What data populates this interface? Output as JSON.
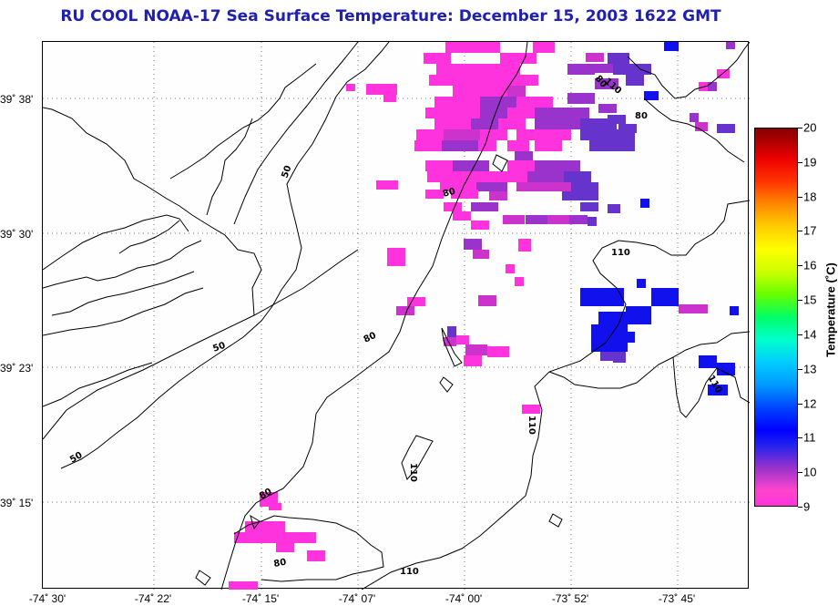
{
  "title": "RU COOL  NOAA-17  Sea Surface Temperature:  December 15, 2003 1622 GMT",
  "lat_labels": [
    {
      "text": "39˚ 38'",
      "value": 39.633
    },
    {
      "text": "39˚ 30'",
      "value": 39.5
    },
    {
      "text": "39˚ 23'",
      "value": 39.383
    },
    {
      "text": "39˚ 15'",
      "value": 39.25
    }
  ],
  "lon_labels": [
    {
      "text": "-74˚ 30'",
      "value": -74.5
    },
    {
      "text": "-74˚ 22'",
      "value": -74.367
    },
    {
      "text": "-74˚ 15'",
      "value": -74.25
    },
    {
      "text": "-74˚ 07'",
      "value": -74.117
    },
    {
      "text": "-74˚ 00'",
      "value": -74.0
    },
    {
      "text": "-73˚ 52'",
      "value": -73.867
    },
    {
      "text": "-73˚ 45'",
      "value": -73.75
    }
  ],
  "colorbar": {
    "title": "Temperature (˚C)",
    "ticks": [
      "9",
      "10",
      "11",
      "12",
      "13",
      "14",
      "15",
      "16",
      "17",
      "18",
      "19",
      "20"
    ],
    "min": 9,
    "max": 20
  },
  "contour_labels": [
    "50",
    "50",
    "50",
    "80",
    "80",
    "80",
    "80",
    "110",
    "110",
    "110",
    "110",
    "110",
    "80",
    "80",
    "110"
  ],
  "colors": {
    "title": "#1f1fb0",
    "sst_9": "#ff33dd",
    "sst_9_5": "#cc33cc",
    "sst_10": "#9933cc",
    "sst_10_5": "#6633cc",
    "sst_11": "#1111ee"
  }
}
